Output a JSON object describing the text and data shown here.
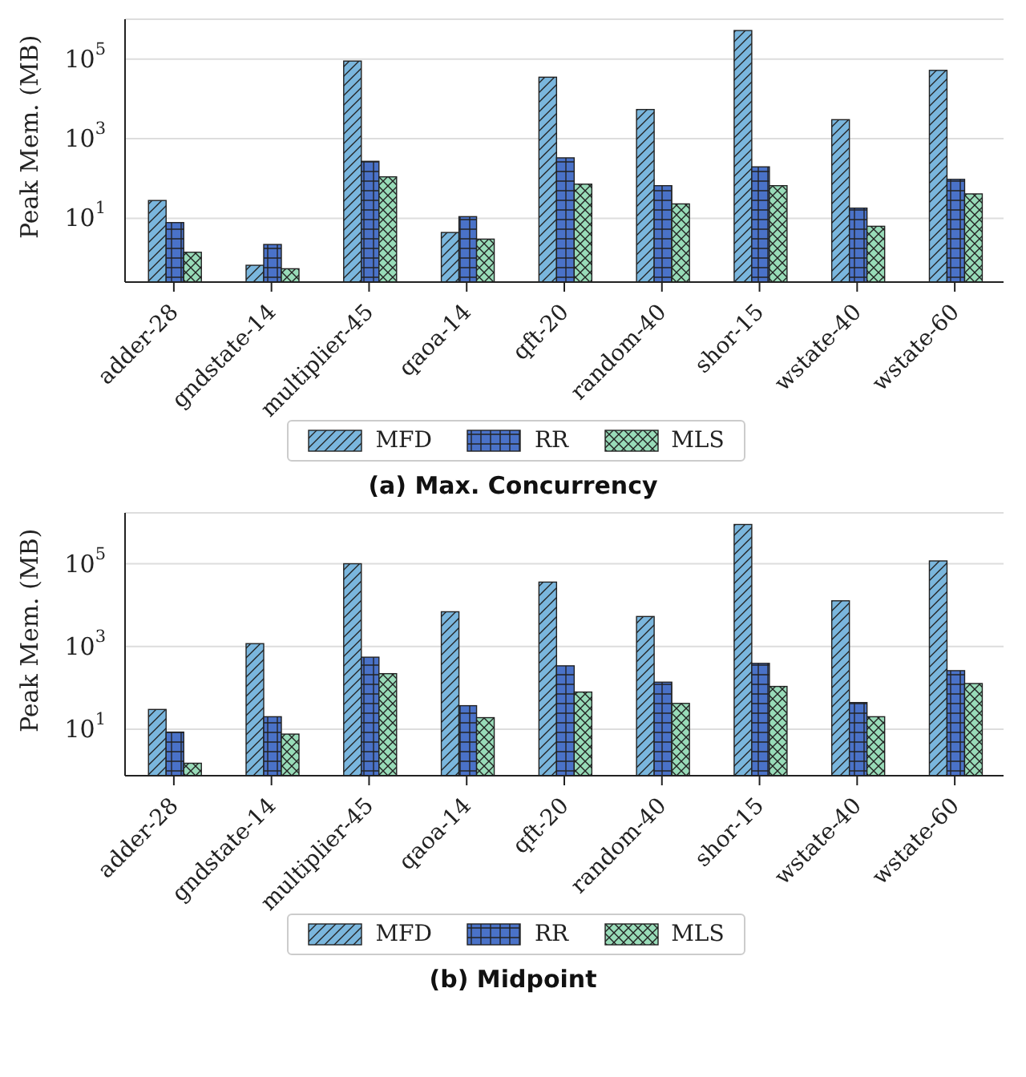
{
  "chart_data": [
    {
      "type": "bar",
      "title": "(a) Max. Concurrency",
      "ylabel": "Peak Mem. (MB)",
      "categories": [
        "adder-28",
        "gndstate-14",
        "multiplier-45",
        "qaoa-14",
        "qft-20",
        "random-40",
        "shor-15",
        "wstate-40",
        "wstate-60"
      ],
      "series": [
        {
          "name": "MFD",
          "color": "#7ab6dd",
          "values": [
            28,
            0.66,
            89000,
            4.4,
            35000,
            5400,
            520000,
            3000,
            52000
          ]
        },
        {
          "name": "RR",
          "color": "#4a72c8",
          "values": [
            7.8,
            2.2,
            270,
            11,
            330,
            66,
            196,
            18,
            95
          ]
        },
        {
          "name": "MLS",
          "color": "#98dbb8",
          "values": [
            1.4,
            0.54,
            110,
            3.0,
            72,
            23,
            66,
            6.3,
            41
          ]
        }
      ],
      "log": true,
      "ylim": [
        0.25,
        1000000
      ],
      "yticks": [
        {
          "value": 10,
          "label": "10$^{1}$"
        },
        {
          "value": 1000,
          "label": "10$^{3}$"
        },
        {
          "value": 100000,
          "label": "10$^{5}$"
        }
      ],
      "grid": "y",
      "legend": "bottom"
    },
    {
      "type": "bar",
      "title": "(b) Midpoint",
      "ylabel": "Peak Mem. (MB)",
      "categories": [
        "adder-28",
        "gndstate-14",
        "multiplier-45",
        "qaoa-14",
        "qft-20",
        "random-40",
        "shor-15",
        "wstate-40",
        "wstate-60"
      ],
      "series": [
        {
          "name": "MFD",
          "color": "#7ab6dd",
          "values": [
            30,
            1170,
            100000,
            6900,
            36000,
            5300,
            890000,
            12700,
            117000
          ]
        },
        {
          "name": "RR",
          "color": "#4a72c8",
          "values": [
            8.5,
            20,
            550,
            37,
            340,
            137,
            390,
            44,
            260
          ]
        },
        {
          "name": "MLS",
          "color": "#98dbb8",
          "values": [
            1.5,
            7.6,
            220,
            19,
            79,
            42,
            108,
            20,
            127
          ]
        }
      ],
      "log": true,
      "ylim": [
        0.75,
        1700000
      ],
      "yticks": [
        {
          "value": 10,
          "label": "10$^{1}$"
        },
        {
          "value": 1000,
          "label": "10$^{3}$"
        },
        {
          "value": 100000,
          "label": "10$^{5}$"
        }
      ],
      "grid": "y",
      "legend": "bottom"
    }
  ]
}
